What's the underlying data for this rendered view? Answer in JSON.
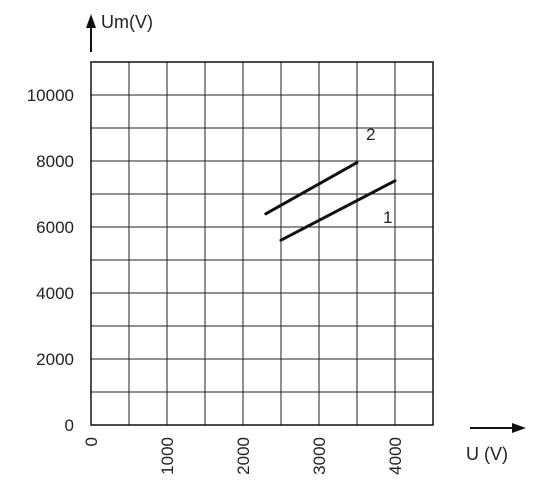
{
  "chart_data": {
    "type": "line",
    "xlabel": "U (V)",
    "ylabel": "Um(V)",
    "xlim": [
      0,
      4500
    ],
    "ylim": [
      0,
      11000
    ],
    "x_ticks": [
      0,
      1000,
      2000,
      3000,
      4000
    ],
    "x_tick_labels": [
      "0",
      "1000",
      "2000",
      "3000",
      "4000"
    ],
    "y_ticks": [
      0,
      2000,
      4000,
      6000,
      8000,
      10000
    ],
    "y_tick_labels": [
      "0",
      "2000",
      "4000",
      "6000",
      "8000",
      "10000"
    ],
    "grid": true,
    "series": [
      {
        "name": "1",
        "x": [
          2500,
          4000
        ],
        "y": [
          5600,
          7400
        ]
      },
      {
        "name": "2",
        "x": [
          2300,
          3500
        ],
        "y": [
          6400,
          7950
        ]
      }
    ],
    "colors": {
      "line": "#111111",
      "grid": "#222222"
    }
  }
}
